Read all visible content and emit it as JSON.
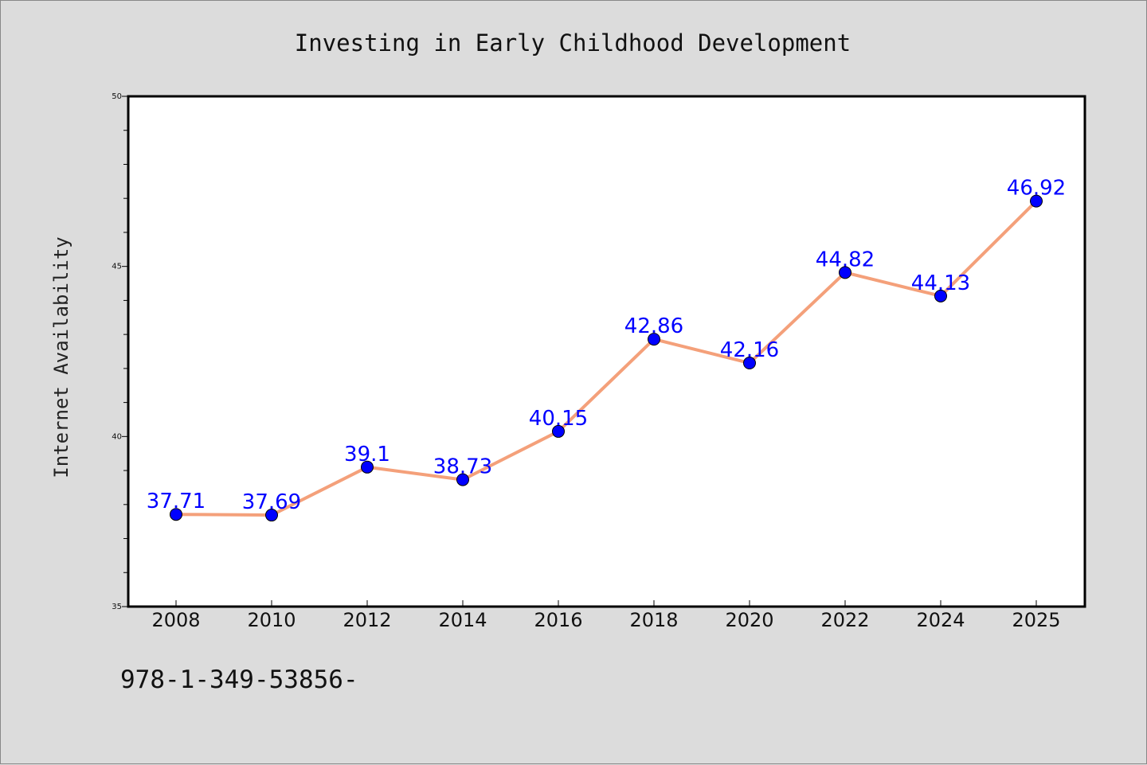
{
  "chart_data": {
    "type": "line",
    "title": "Investing in Early Childhood Development",
    "xlabel": "",
    "ylabel": "Internet Availability",
    "categories": [
      "2008",
      "2010",
      "2012",
      "2014",
      "2016",
      "2018",
      "2020",
      "2022",
      "2024",
      "2025"
    ],
    "series": [
      {
        "values": [
          37.71,
          37.69,
          39.1,
          38.73,
          40.15,
          42.86,
          42.16,
          44.82,
          44.13,
          46.92
        ],
        "labels": [
          "37.71",
          "37.69",
          "39.1",
          "38.73",
          "40.15",
          "42.86",
          "42.16",
          "44.82",
          "44.13",
          "46.92"
        ],
        "line_color": "#f4a07a",
        "marker_color": "#0000ff"
      }
    ],
    "ylim": [
      35,
      50
    ],
    "y_major_ticks": [
      35,
      40,
      45,
      50
    ],
    "y_minor_step": 1,
    "grid": false,
    "legend": "none",
    "annotation": "978-1-349-53856-",
    "background_color": "#dcdcdc",
    "plot_background_color": "#ffffff",
    "label_color": "#0000ff"
  }
}
